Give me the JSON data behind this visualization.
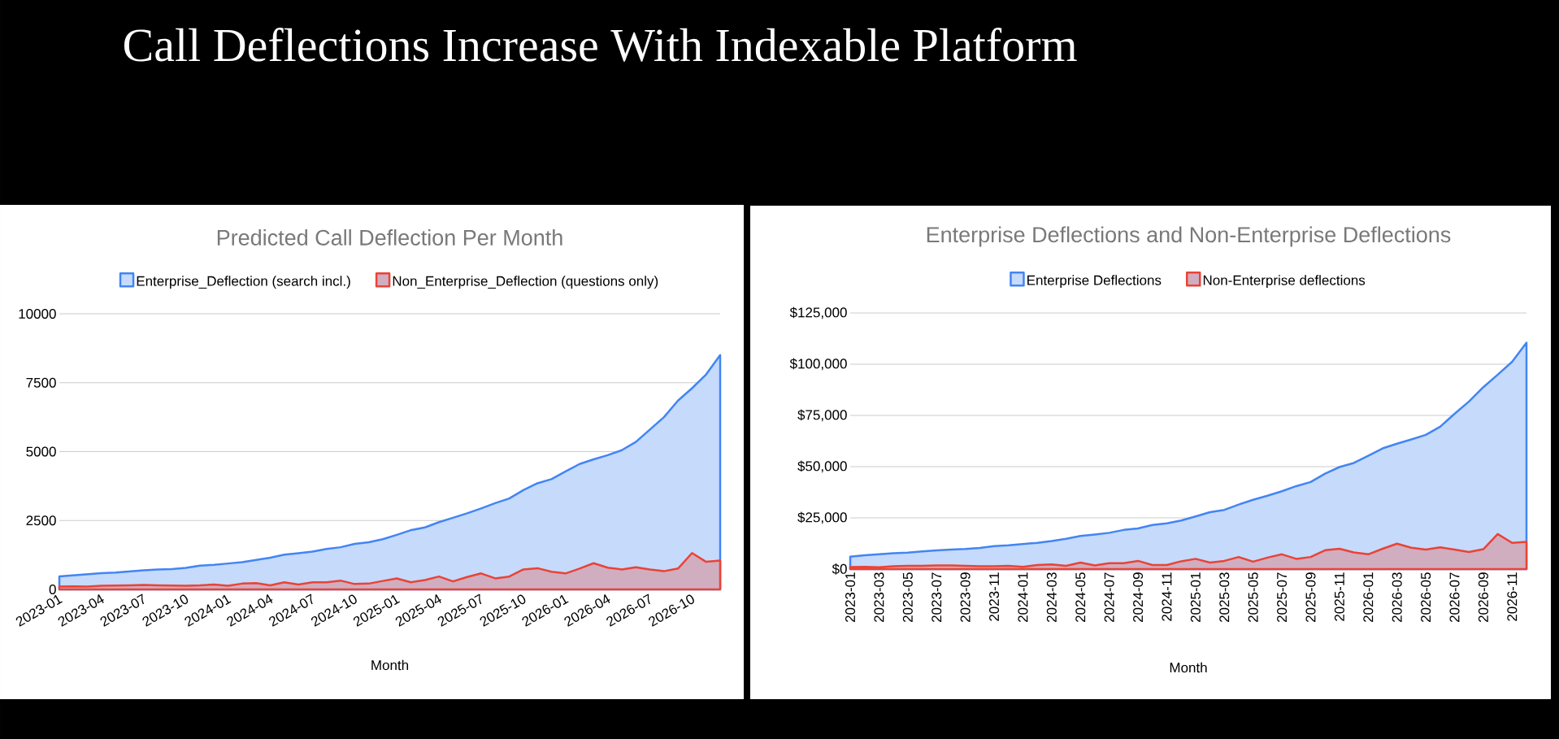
{
  "chart_data": [
    {
      "type": "other",
      "title": "Call Deflections Increase With Indexable Platform"
    },
    {
      "type": "area",
      "title": "Predicted Call Deflection Per Month",
      "xlabel": "Month",
      "x": [
        "2023-01",
        "2023-02",
        "2023-03",
        "2023-04",
        "2023-05",
        "2023-06",
        "2023-07",
        "2023-08",
        "2023-09",
        "2023-10",
        "2023-11",
        "2023-12",
        "2024-01",
        "2024-02",
        "2024-03",
        "2024-04",
        "2024-05",
        "2024-06",
        "2024-07",
        "2024-08",
        "2024-09",
        "2024-10",
        "2024-11",
        "2024-12",
        "2025-01",
        "2025-02",
        "2025-03",
        "2025-04",
        "2025-05",
        "2025-06",
        "2025-07",
        "2025-08",
        "2025-09",
        "2025-10",
        "2025-11",
        "2025-12",
        "2026-01",
        "2026-02",
        "2026-03",
        "2026-04",
        "2026-05",
        "2026-06",
        "2026-07",
        "2026-08",
        "2026-09",
        "2026-10",
        "2026-11",
        "2026-12"
      ],
      "series": [
        {
          "name": "Enterprise_Deflection (search incl.)",
          "color": "#4285f4",
          "values": [
            470,
            510,
            550,
            590,
            610,
            650,
            690,
            720,
            740,
            780,
            860,
            890,
            940,
            990,
            1070,
            1150,
            1260,
            1310,
            1370,
            1470,
            1530,
            1650,
            1710,
            1820,
            1980,
            2150,
            2250,
            2440,
            2600,
            2760,
            2940,
            3130,
            3300,
            3600,
            3850,
            4000,
            4280,
            4550,
            4720,
            4870,
            5050,
            5350,
            5800,
            6250,
            6850,
            7300,
            7800,
            8500
          ]
        },
        {
          "name": "Non_Enterprise_Deflection (questions only)",
          "color": "#ea4335",
          "values": [
            100,
            110,
            100,
            130,
            140,
            150,
            160,
            150,
            140,
            130,
            145,
            177,
            130,
            210,
            225,
            145,
            258,
            177,
            258,
            258,
            320,
            195,
            210,
            305,
            400,
            258,
            340,
            467,
            290,
            450,
            580,
            400,
            467,
            725,
            770,
            640,
            580,
            757,
            950,
            790,
            725,
            805,
            725,
            660,
            757,
            1320,
            1000,
            1050
          ]
        }
      ],
      "xlim": [
        "2023-01",
        "2026-12"
      ],
      "xticks": [
        "2023-01",
        "2023-04",
        "2023-07",
        "2023-10",
        "2024-01",
        "2024-04",
        "2024-07",
        "2024-10",
        "2025-01",
        "2025-04",
        "2025-07",
        "2025-10",
        "2026-01",
        "2026-04",
        "2026-07",
        "2026-10"
      ],
      "ylim": [
        0,
        10000
      ],
      "yticks": [
        0,
        2500,
        5000,
        7500,
        10000
      ],
      "grid": "y",
      "legend": "top"
    },
    {
      "type": "area",
      "title": "Enterprise Deflections and Non-Enterprise Deflections",
      "xlabel": "Month",
      "x": [
        "2023-01",
        "2023-02",
        "2023-03",
        "2023-04",
        "2023-05",
        "2023-06",
        "2023-07",
        "2023-08",
        "2023-09",
        "2023-10",
        "2023-11",
        "2023-12",
        "2024-01",
        "2024-02",
        "2024-03",
        "2024-04",
        "2024-05",
        "2024-06",
        "2024-07",
        "2024-08",
        "2024-09",
        "2024-10",
        "2024-11",
        "2024-12",
        "2025-01",
        "2025-02",
        "2025-03",
        "2025-04",
        "2025-05",
        "2025-06",
        "2025-07",
        "2025-08",
        "2025-09",
        "2025-10",
        "2025-11",
        "2025-12",
        "2026-01",
        "2026-02",
        "2026-03",
        "2026-04",
        "2026-05",
        "2026-06",
        "2026-07",
        "2026-08",
        "2026-09",
        "2026-10",
        "2026-11",
        "2026-12"
      ],
      "series": [
        {
          "name": "Enterprise Deflections",
          "color": "#4285f4",
          "values": [
            6000,
            6700,
            7200,
            7700,
            8000,
            8600,
            9100,
            9500,
            9800,
            10300,
            11200,
            11600,
            12200,
            12800,
            13700,
            14800,
            16200,
            16900,
            17700,
            19100,
            19800,
            21500,
            22300,
            23700,
            25700,
            27800,
            28900,
            31500,
            33800,
            35800,
            38000,
            40500,
            42500,
            46600,
            49800,
            51800,
            55300,
            58900,
            61200,
            63300,
            65500,
            69500,
            75800,
            81800,
            88800,
            94900,
            101200,
            110500
          ]
        },
        {
          "name": "Non-Enterprise deflections",
          "color": "#ea4335",
          "values": [
            1000,
            1100,
            900,
            1400,
            1600,
            1600,
            1800,
            1800,
            1600,
            1400,
            1400,
            1600,
            1100,
            2000,
            2300,
            1600,
            3200,
            1800,
            2900,
            2900,
            4000,
            2000,
            2000,
            3800,
            5000,
            3200,
            4000,
            5900,
            3600,
            5600,
            7200,
            5000,
            5900,
            9200,
            9900,
            8100,
            7200,
            9900,
            12400,
            10400,
            9500,
            10600,
            9500,
            8300,
            9700,
            17100,
            12800,
            13300
          ]
        }
      ],
      "xlim": [
        "2023-01",
        "2026-12"
      ],
      "xticks": [
        "2023-01",
        "2023-03",
        "2023-05",
        "2023-07",
        "2023-09",
        "2023-11",
        "2024-01",
        "2024-03",
        "2024-05",
        "2024-07",
        "2024-09",
        "2024-11",
        "2025-01",
        "2025-03",
        "2025-05",
        "2025-07",
        "2025-09",
        "2025-11",
        "2026-01",
        "2026-03",
        "2026-05",
        "2026-07",
        "2026-09",
        "2026-11"
      ],
      "ylim": [
        0,
        125000
      ],
      "yticks": [
        {
          "value": 0,
          "label": "$0"
        },
        {
          "value": 25000,
          "label": "$25,000"
        },
        {
          "value": 50000,
          "label": "$50,000"
        },
        {
          "value": 75000,
          "label": "$75,000"
        },
        {
          "value": 100000,
          "label": "$100,000"
        },
        {
          "value": 125000,
          "label": "$125,000"
        }
      ],
      "grid": "y",
      "legend": "top"
    }
  ]
}
